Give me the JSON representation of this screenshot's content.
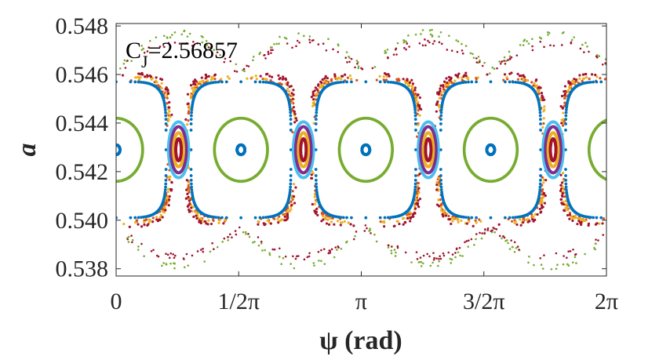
{
  "chart_data": {
    "type": "scatter",
    "title": "",
    "xlabel": "ψ (rad)",
    "ylabel": "a",
    "xlim": [
      0,
      6.283185
    ],
    "ylim": [
      0.5377,
      0.5481
    ],
    "x_ticks": [
      {
        "value": 0,
        "label": "0"
      },
      {
        "value": 1.570796,
        "label": "1/2π"
      },
      {
        "value": 3.141593,
        "label": "π"
      },
      {
        "value": 4.712389,
        "label": "3/2π"
      },
      {
        "value": 6.283185,
        "label": "2π"
      }
    ],
    "y_ticks": [
      {
        "value": 0.538,
        "label": "0.538"
      },
      {
        "value": 0.54,
        "label": "0.540"
      },
      {
        "value": 0.542,
        "label": "0.542"
      },
      {
        "value": 0.544,
        "label": "0.544"
      },
      {
        "value": 0.546,
        "label": "0.546"
      },
      {
        "value": 0.548,
        "label": "0.548"
      }
    ],
    "grid": false,
    "annotation": {
      "main": "C",
      "sub": "J",
      "rest": "=2.56857"
    },
    "colors": {
      "blue": "#0072bd",
      "orange": "#d95319",
      "yellow": "#edb120",
      "purple": "#7e2f8e",
      "green": "#77ac30",
      "lightblue": "#4dbeee",
      "red": "#a2142f"
    },
    "resonance": {
      "center_a": 0.5429,
      "big_island_centers": [
        0,
        1.6,
        3.2,
        4.8,
        6.4
      ],
      "small_island_centers": [
        0.8,
        2.4,
        4.0,
        5.6
      ],
      "curves": [
        {
          "name": "outer",
          "color": "blue",
          "half_width": 0.64,
          "half_height": 0.0028,
          "exponent": 5,
          "islands": "big"
        },
        {
          "name": "ring",
          "color": "green",
          "half_width": 0.34,
          "half_height": 0.0013,
          "exponent": 2,
          "islands": "big"
        },
        {
          "name": "core",
          "color": "blue",
          "half_width": 0.05,
          "half_height": 0.0002,
          "exponent": 2,
          "islands": "big"
        },
        {
          "name": "small-outer",
          "color": "lightblue",
          "half_width": 0.13,
          "half_height": 0.00115,
          "exponent": 2,
          "islands": "small"
        },
        {
          "name": "small-mid",
          "color": "purple",
          "half_width": 0.1,
          "half_height": 0.00095,
          "exponent": 2,
          "islands": "small"
        },
        {
          "name": "small-inner",
          "color": "yellow",
          "half_width": 0.065,
          "half_height": 0.0007,
          "exponent": 2,
          "islands": "small"
        },
        {
          "name": "small-core",
          "color": "red",
          "half_width": 0.035,
          "half_height": 0.00045,
          "exponent": 2,
          "islands": "small"
        }
      ],
      "chaotic_layers": [
        {
          "color": "orange",
          "half_width": 0.67,
          "half_height": 0.0029
        },
        {
          "color": "yellow",
          "half_width": 0.68,
          "half_height": 0.00298
        },
        {
          "color": "red",
          "half_width": 0.7,
          "half_height": 0.0031
        }
      ],
      "outer_arcs": [
        {
          "color": "green",
          "amplitude": 0.0048
        },
        {
          "color": "red",
          "amplitude": 0.0044
        }
      ]
    }
  }
}
